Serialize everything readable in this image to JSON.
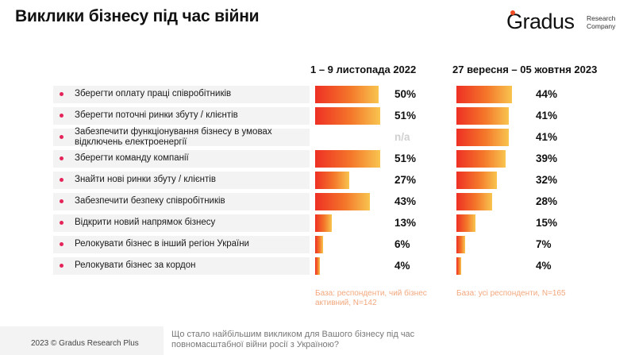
{
  "title": "Виклики бізнесу під час війни",
  "logo": {
    "name": "Gradus",
    "sub_line1": "Research",
    "sub_line2": "Company"
  },
  "chart_data": {
    "type": "bar",
    "orientation": "horizontal",
    "categories": [
      "Зберегти оплату праці співробітників",
      "Зберегти поточні ринки збуту / клієнтів",
      "Забезпечити функціонування бізнесу в умовах відключень електроенергії",
      "Зберегти команду компанії",
      "Знайти нові ринки збуту / клієнтів",
      "Забезпечити безпеку співробітників",
      "Відкрити новий напрямок бізнесу",
      "Релокувати бізнес в інший регіон України",
      "Релокувати бізнес за кордон"
    ],
    "category_lines": [
      [
        "Зберегти оплату праці співробітників"
      ],
      [
        "Зберегти поточні ринки збуту / клієнтів"
      ],
      [
        "Забезпечити функціонування бізнесу в умовах",
        "відключень електроенергії"
      ],
      [
        "Зберегти команду компанії"
      ],
      [
        "Знайти нові ринки збуту / клієнтів"
      ],
      [
        "Забезпечити безпеку співробітників"
      ],
      [
        "Відкрити новий напрямок бізнесу"
      ],
      [
        "Релокувати бізнес в інший регіон України"
      ],
      [
        "Релокувати бізнес за кордон"
      ]
    ],
    "series": [
      {
        "name": "1 – 9 листопада 2022",
        "values": [
          50,
          51,
          null,
          51,
          27,
          43,
          13,
          6,
          4
        ],
        "labels": [
          "50%",
          "51%",
          "n/a",
          "51%",
          "27%",
          "43%",
          "13%",
          "6%",
          "4%"
        ],
        "base": "База: респонденти, чий бізнес активний, N=142"
      },
      {
        "name": "27 вересня – 05 жовтня 2023",
        "values": [
          44,
          41,
          41,
          39,
          32,
          28,
          15,
          7,
          4
        ],
        "labels": [
          "44%",
          "41%",
          "41%",
          "39%",
          "32%",
          "28%",
          "15%",
          "7%",
          "4%"
        ],
        "base": "База: усі респонденти, N=165"
      }
    ],
    "xlim": [
      0,
      100
    ],
    "colors": {
      "bar_start": "#ee3024",
      "bar_mid": "#f4772a",
      "bar_end": "#f8c44f",
      "bullet": "#e5245a",
      "base_note": "#f3a77d"
    }
  },
  "footer": {
    "copyright": "2023 © Gradus Research Plus",
    "question": "Що стало найбільшим викликом для Вашого бізнесу під час повномасштабної війни росії з Україною?"
  }
}
